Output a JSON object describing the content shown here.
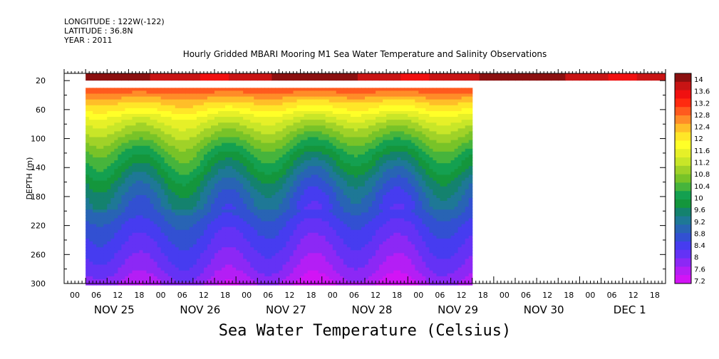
{
  "header": {
    "longitude": "LONGITUDE : 122W(-122)",
    "latitude": "LATITUDE : 36.8N",
    "year": "YEAR : 2011"
  },
  "chart_data": {
    "type": "heatmap",
    "title": "Hourly Gridded MBARI Mooring M1 Sea Water Temperature and Salinity Observations",
    "xlabel": "Sea Water Temperature (Celsius)",
    "ylabel": "DEPTH (m)",
    "y_range": [
      300,
      10
    ],
    "y_ticks": [
      20,
      60,
      100,
      140,
      180,
      220,
      260,
      300
    ],
    "x_hour_ticks": [
      "00",
      "06",
      "12",
      "18",
      "00",
      "06",
      "12",
      "18",
      "00",
      "06",
      "12",
      "18",
      "00",
      "06",
      "12",
      "18",
      "00",
      "06",
      "12",
      "18",
      "00",
      "06",
      "12",
      "18",
      "00",
      "06",
      "12",
      "18"
    ],
    "x_day_labels": [
      "NOV 25",
      "NOV 26",
      "NOV 27",
      "NOV 28",
      "NOV 29",
      "NOV 30",
      "DEC  1"
    ],
    "x_range_hours": [
      0,
      168
    ],
    "data_extent": {
      "surface_strip": {
        "depth_range": [
          10,
          20
        ],
        "hours": [
          6,
          168
        ]
      },
      "profile": {
        "depth_range": [
          30,
          300
        ],
        "hours": [
          6,
          114
        ]
      }
    },
    "colorbar": {
      "levels": [
        "14",
        "13.6",
        "13.2",
        "12.8",
        "12.4",
        "12",
        "11.6",
        "11.2",
        "10.8",
        "10.4",
        "10",
        "9.6",
        "9.2",
        "8.8",
        "8.4",
        "8",
        "7.6",
        "7.2"
      ],
      "colors": [
        "#8b1010",
        "#c81414",
        "#f01010",
        "#ff2a10",
        "#ff5a1e",
        "#ff8c28",
        "#ffbe28",
        "#ffe628",
        "#ffff28",
        "#e6f028",
        "#c8e628",
        "#a0d228",
        "#78c328",
        "#46b43c",
        "#14a050",
        "#14963c",
        "#14826e",
        "#1e7896",
        "#2864b4",
        "#3250d2",
        "#463cf0",
        "#6432f5",
        "#8c28f5",
        "#b41ef5",
        "#d214f5"
      ]
    },
    "depth_profile": [
      {
        "depth": 30,
        "temp": 12.9
      },
      {
        "depth": 40,
        "temp": 12.5
      },
      {
        "depth": 50,
        "temp": 12.1
      },
      {
        "depth": 60,
        "temp": 11.8
      },
      {
        "depth": 70,
        "temp": 11.4
      },
      {
        "depth": 80,
        "temp": 11.1
      },
      {
        "depth": 100,
        "temp": 10.6
      },
      {
        "depth": 120,
        "temp": 10.1
      },
      {
        "depth": 140,
        "temp": 9.7
      },
      {
        "depth": 160,
        "temp": 9.3
      },
      {
        "depth": 180,
        "temp": 9.0
      },
      {
        "depth": 200,
        "temp": 8.8
      },
      {
        "depth": 220,
        "temp": 8.5
      },
      {
        "depth": 240,
        "temp": 8.3
      },
      {
        "depth": 260,
        "temp": 8.1
      },
      {
        "depth": 280,
        "temp": 7.9
      },
      {
        "depth": 300,
        "temp": 7.6
      }
    ]
  }
}
